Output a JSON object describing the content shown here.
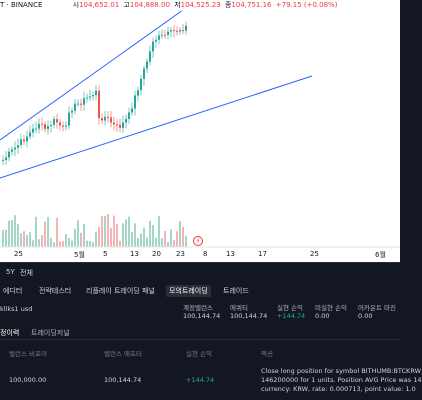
{
  "legend": {
    "symbol": "T · BINANCE",
    "o_label": "시",
    "o_value": "104,652.01",
    "h_label": "고",
    "h_value": "104,888.00",
    "l_label": "저",
    "l_value": "104,525.23",
    "c_label": "종",
    "c_value": "104,751.16",
    "change": "+79.15 (+0.08%)"
  },
  "x_axis": [
    "25",
    "5월",
    "5",
    "13",
    "20",
    "23",
    "8",
    "13",
    "17",
    "25",
    "6월"
  ],
  "event_badge": "⚡",
  "range_bar": {
    "period": "5Y",
    "all": "전체"
  },
  "tabs": [
    {
      "label": "에디터",
      "active": false
    },
    {
      "label": "전략테스터",
      "active": false
    },
    {
      "label": "리플레이 트레이딩 패널",
      "active": false
    },
    {
      "label": "모의트레이딩",
      "active": true
    },
    {
      "label": "트레이드",
      "active": false
    }
  ],
  "account": {
    "selector": "kllks1 usd",
    "columns": [
      {
        "label": "계정밸런스",
        "value": "100,144.74",
        "green": false
      },
      {
        "label": "에퀴티",
        "value": "100,144.74",
        "green": false
      },
      {
        "label": "실현 손익",
        "value": "+144.74",
        "green": true
      },
      {
        "label": "미실현 손익",
        "value": "0.00",
        "green": false
      },
      {
        "label": "어카운트 마진",
        "value": "0.00",
        "green": false
      }
    ]
  },
  "subtabs": {
    "history": "정이력",
    "journal": "트레이딩저널"
  },
  "table": {
    "headers": [
      "밸런스 비포어",
      "밸런스 애프터",
      "실현 손익",
      "액션"
    ],
    "rows": [
      {
        "before": "100,000.00",
        "after": "100,144.74",
        "pnl": "+144.74",
        "action_lines": [
          "Close long position for symbol BITHUMB:BTCKRW",
          "146200000 for 1 units. Position AVG Price was 14",
          "currency: KRW, rate: 0.000713, point value: 1.0"
        ]
      }
    ]
  },
  "chart_data": {
    "type": "candlestick",
    "x_labels": [
      "25",
      "5월",
      "5",
      "13",
      "20",
      "23",
      "8",
      "13",
      "17",
      "25",
      "6월"
    ],
    "trend": "ascending wedge / channel with two trend lines; price rising from ~Apr 25 to mid-May, sharp rally near May 9-10",
    "colors": {
      "up": "#26a69a",
      "down": "#ef5350",
      "trendline": "#2962ff"
    }
  }
}
